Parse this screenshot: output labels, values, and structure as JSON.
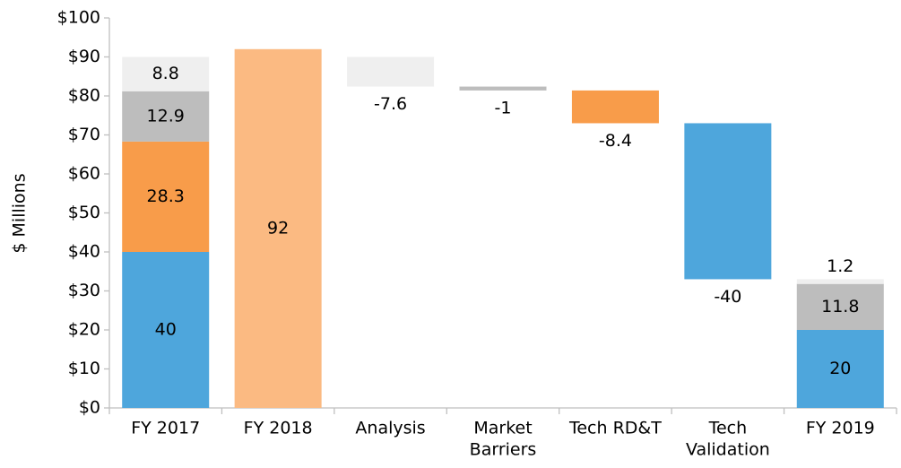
{
  "chart_data": {
    "type": "waterfall",
    "ylabel": "$ Millions",
    "categories": [
      "FY 2017",
      "FY 2018",
      "Analysis",
      [
        "Market",
        "Barriers"
      ],
      "Tech RD&T",
      [
        "Tech",
        "Validation"
      ],
      "FY 2019"
    ],
    "measures": [
      "total",
      "reference",
      "relative",
      "relative",
      "relative",
      "relative",
      "total"
    ],
    "series": [
      {
        "color": "#4ea6dc",
        "values": [
          40,
          null,
          null,
          null,
          null,
          -40,
          20
        ]
      },
      {
        "color": "#f89c4a",
        "values": [
          28.3,
          null,
          null,
          null,
          -8.4,
          null,
          null
        ]
      },
      {
        "color": "#bdbdbd",
        "values": [
          12.9,
          null,
          null,
          -1,
          null,
          null,
          11.8
        ]
      },
      {
        "color": "#efefef",
        "values": [
          8.8,
          null,
          -7.6,
          null,
          null,
          null,
          1.2
        ]
      },
      {
        "color": "#fbba82",
        "values": [
          null,
          92,
          null,
          null,
          null,
          null,
          null
        ]
      }
    ],
    "ylim": [
      0,
      100
    ],
    "yticks": [
      {
        "value": 0,
        "label": "$0"
      },
      {
        "value": 10,
        "label": "$10"
      },
      {
        "value": 20,
        "label": "$20"
      },
      {
        "value": 30,
        "label": "$30"
      },
      {
        "value": 40,
        "label": "$40"
      },
      {
        "value": 50,
        "label": "$50"
      },
      {
        "value": 60,
        "label": "$60"
      },
      {
        "value": 70,
        "label": "$70"
      },
      {
        "value": 80,
        "label": "$80"
      },
      {
        "value": 90,
        "label": "$90"
      },
      {
        "value": 100,
        "label": "$100"
      }
    ]
  }
}
